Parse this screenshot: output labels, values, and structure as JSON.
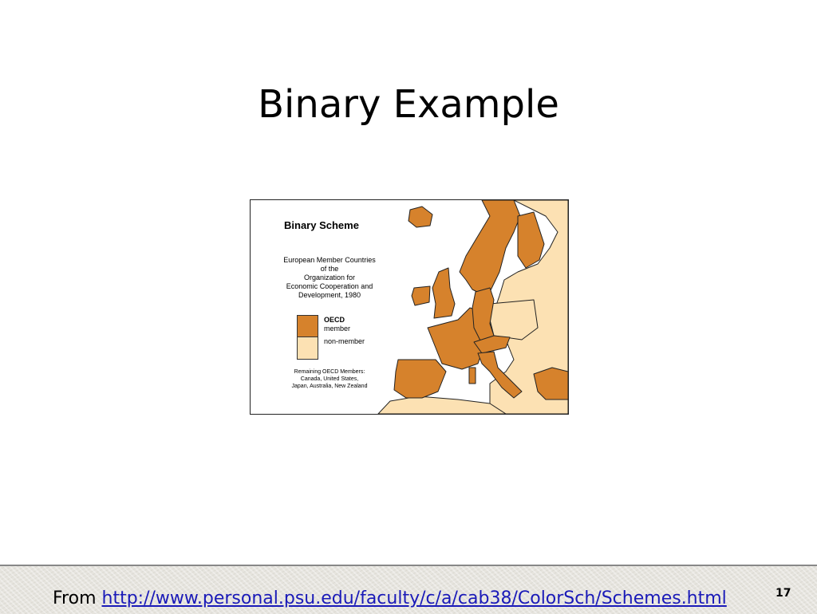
{
  "slide": {
    "title": "Binary Example",
    "page_number": "17",
    "footer": {
      "prefix": "From",
      "link_text": "http://www.personal.psu.edu/faculty/c/a/cab38/ColorSch/Schemes.html"
    }
  },
  "map": {
    "title": "Binary Scheme",
    "description_lines": [
      "European Member Countries",
      "of the",
      "Organization for",
      "Economic Cooperation and",
      "Development, 1980"
    ],
    "legend": [
      {
        "label_bold": "OECD",
        "label": "member",
        "color": "#D6822C"
      },
      {
        "label_bold": "",
        "label": "non-member",
        "color": "#FCE1B3"
      }
    ],
    "remaining_lines": [
      "Remaining OECD Members:",
      "Canada, United States,",
      "Japan, Australia, New Zealand"
    ]
  }
}
